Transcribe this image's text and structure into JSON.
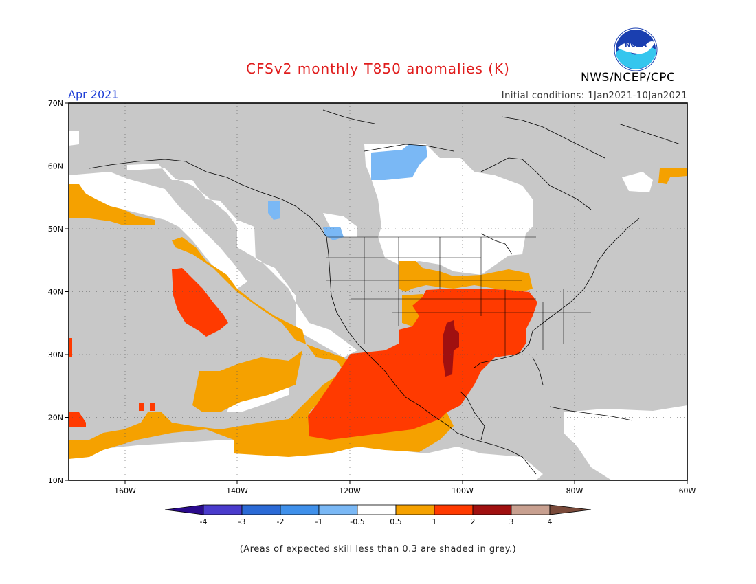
{
  "header": {
    "title": "CFSv2 monthly T850 anomalies (K)",
    "period": "Apr 2021",
    "initial_conditions": "Initial conditions: 1Jan2021-10Jan2021",
    "organization": "NWS/NCEP/CPC",
    "logo_icon": "noaa-logo-icon",
    "logo_text": "NOAA"
  },
  "map": {
    "lon_range": [
      -170,
      -60
    ],
    "lat_range": [
      10,
      70
    ],
    "lat_labels": [
      "70N",
      "60N",
      "50N",
      "40N",
      "30N",
      "20N",
      "10N"
    ],
    "lon_labels": [
      "160W",
      "140W",
      "120W",
      "100W",
      "80W",
      "60W"
    ],
    "grid": true
  },
  "colorbar": {
    "ticks": [
      "-4",
      "-3",
      "-2",
      "-1",
      "-0.5",
      "0.5",
      "1",
      "2",
      "3",
      "4"
    ],
    "colors": [
      "#2a0a8c",
      "#4a3bcc",
      "#2b6ad6",
      "#3f90ea",
      "#7ab8f5",
      "#ffffff",
      "#f5a100",
      "#ff3a00",
      "#a01010",
      "#c8a090",
      "#7a4a3a"
    ]
  },
  "colors": {
    "grey": "#c8c8c8",
    "orange": "#f5a100",
    "red": "#ff3a00",
    "darkred": "#a01010",
    "lightblue": "#7ab8f5",
    "white": "#ffffff"
  },
  "footer": {
    "note": "(Areas of expected skill less than 0.3 are shaded in grey.)"
  }
}
